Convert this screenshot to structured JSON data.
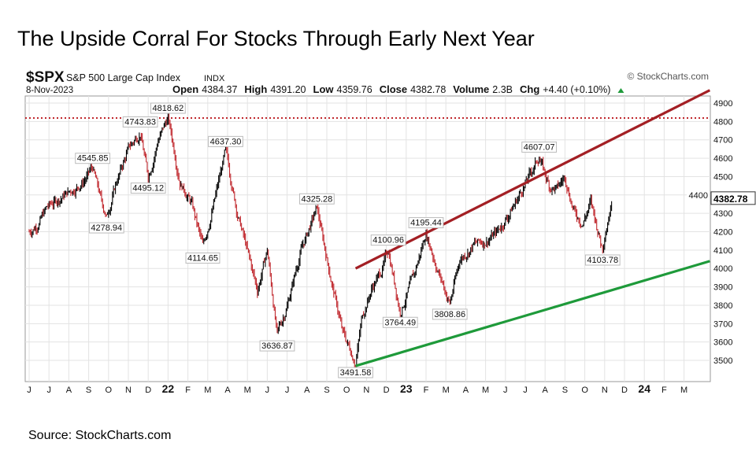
{
  "title": "The Upside Corral For Stocks Through Early Next Year",
  "source": "Source: StockCharts.com",
  "chart_data": {
    "type": "ohlc-bar",
    "symbol": "$SPX",
    "name": "S&P 500 Large Cap Index",
    "exchange": "INDX",
    "date": "8-Nov-2023",
    "copyright": "© StockCharts.com",
    "quote": [
      {
        "label": "Open",
        "value": "4384.37"
      },
      {
        "label": "High",
        "value": "4391.20"
      },
      {
        "label": "Low",
        "value": "4359.76"
      },
      {
        "label": "Close",
        "value": "4382.78"
      },
      {
        "label": "Volume",
        "value": "2.3B"
      },
      {
        "label": "Chg",
        "value": "+4.40 (+0.10%)"
      }
    ],
    "last_price_label": "4382.78",
    "ylim": [
      3350,
      5000
    ],
    "yticks": [
      3500,
      3600,
      3700,
      3800,
      3900,
      4000,
      4100,
      4200,
      4300,
      4400,
      4500,
      4600,
      4700,
      4800,
      4900
    ],
    "x_months_range": [
      -0.2,
      34.3
    ],
    "xtick_labels": [
      "J",
      "J",
      "A",
      "S",
      "O",
      "N",
      "D",
      "22",
      "F",
      "M",
      "A",
      "M",
      "J",
      "J",
      "A",
      "S",
      "O",
      "N",
      "D",
      "23",
      "F",
      "M",
      "A",
      "M",
      "J",
      "J",
      "A",
      "S",
      "O",
      "N",
      "D",
      "24",
      "F",
      "M"
    ],
    "x_unit": "months since Jun 2021",
    "price_path": [
      [
        0,
        4200
      ],
      [
        0.4,
        4240
      ],
      [
        0.9,
        4330
      ],
      [
        1.5,
        4380
      ],
      [
        2.2,
        4430
      ],
      [
        2.7,
        4470
      ],
      [
        3.2,
        4545.85
      ],
      [
        3.6,
        4380
      ],
      [
        3.9,
        4278.94
      ],
      [
        4.4,
        4470
      ],
      [
        5.0,
        4650
      ],
      [
        5.6,
        4743.83
      ],
      [
        6.0,
        4495.12
      ],
      [
        6.5,
        4700
      ],
      [
        7.0,
        4818.62
      ],
      [
        7.6,
        4480
      ],
      [
        8.2,
        4350
      ],
      [
        8.75,
        4114.65
      ],
      [
        9.3,
        4350
      ],
      [
        9.9,
        4637.3
      ],
      [
        10.5,
        4300
      ],
      [
        11.1,
        4050
      ],
      [
        11.5,
        3880
      ],
      [
        12.0,
        4100
      ],
      [
        12.5,
        3636.87
      ],
      [
        13.0,
        3800
      ],
      [
        13.7,
        4100
      ],
      [
        14.5,
        4325.28
      ],
      [
        15.2,
        3950
      ],
      [
        15.8,
        3650
      ],
      [
        16.45,
        3491.58
      ],
      [
        16.8,
        3750
      ],
      [
        17.3,
        3900
      ],
      [
        17.8,
        4000
      ],
      [
        18.1,
        4100.96
      ],
      [
        18.7,
        3764.49
      ],
      [
        19.4,
        3960
      ],
      [
        20.0,
        4195.44
      ],
      [
        20.6,
        3990
      ],
      [
        21.2,
        3808.86
      ],
      [
        21.7,
        4050
      ],
      [
        22.4,
        4130
      ],
      [
        23.0,
        4150
      ],
      [
        23.6,
        4200
      ],
      [
        24.2,
        4300
      ],
      [
        24.8,
        4420
      ],
      [
        25.7,
        4607.07
      ],
      [
        26.2,
        4450
      ],
      [
        26.6,
        4430
      ],
      [
        27.0,
        4500
      ],
      [
        27.5,
        4300
      ],
      [
        27.9,
        4250
      ],
      [
        28.3,
        4360
      ],
      [
        28.9,
        4103.78
      ],
      [
        29.4,
        4382.78
      ]
    ],
    "annotations": [
      {
        "label": "4545.85",
        "month": 3.2,
        "value": 4545.85,
        "pos": "above"
      },
      {
        "label": "4278.94",
        "month": 3.9,
        "value": 4278.94,
        "pos": "below"
      },
      {
        "label": "4743.83",
        "month": 5.6,
        "value": 4743.83,
        "pos": "above"
      },
      {
        "label": "4495.12",
        "month": 6.0,
        "value": 4495.12,
        "pos": "below"
      },
      {
        "label": "4818.62",
        "month": 7.0,
        "value": 4818.62,
        "pos": "above"
      },
      {
        "label": "4114.65",
        "month": 8.75,
        "value": 4114.65,
        "pos": "below"
      },
      {
        "label": "4637.30",
        "month": 9.9,
        "value": 4637.3,
        "pos": "above"
      },
      {
        "label": "3636.87",
        "month": 12.5,
        "value": 3636.87,
        "pos": "below"
      },
      {
        "label": "4325.28",
        "month": 14.5,
        "value": 4325.28,
        "pos": "above"
      },
      {
        "label": "3491.58",
        "month": 16.45,
        "value": 3491.58,
        "pos": "below"
      },
      {
        "label": "4100.96",
        "month": 18.1,
        "value": 4100.96,
        "pos": "above"
      },
      {
        "label": "3764.49",
        "month": 18.7,
        "value": 3764.49,
        "pos": "below"
      },
      {
        "label": "4195.44",
        "month": 20.0,
        "value": 4195.44,
        "pos": "above"
      },
      {
        "label": "3808.86",
        "month": 21.2,
        "value": 3808.86,
        "pos": "below"
      },
      {
        "label": "4607.07",
        "month": 25.7,
        "value": 4607.07,
        "pos": "above"
      },
      {
        "label": "4103.78",
        "month": 28.9,
        "value": 4103.78,
        "pos": "below"
      }
    ],
    "reference_line": {
      "value": 4818.62,
      "style": "dotted",
      "color": "#c0272d"
    },
    "channel_lines": [
      {
        "name": "upper-resistance",
        "color": "#a31f24",
        "from": [
          16.45,
          4000
        ],
        "to": [
          34.3,
          4970
        ]
      },
      {
        "name": "lower-support",
        "color": "#1e9a3a",
        "from": [
          16.45,
          3470
        ],
        "to": [
          34.3,
          4040
        ]
      }
    ],
    "colors": {
      "up": "#000000",
      "down": "#c0272d",
      "grid": "#e3e3e3"
    }
  }
}
